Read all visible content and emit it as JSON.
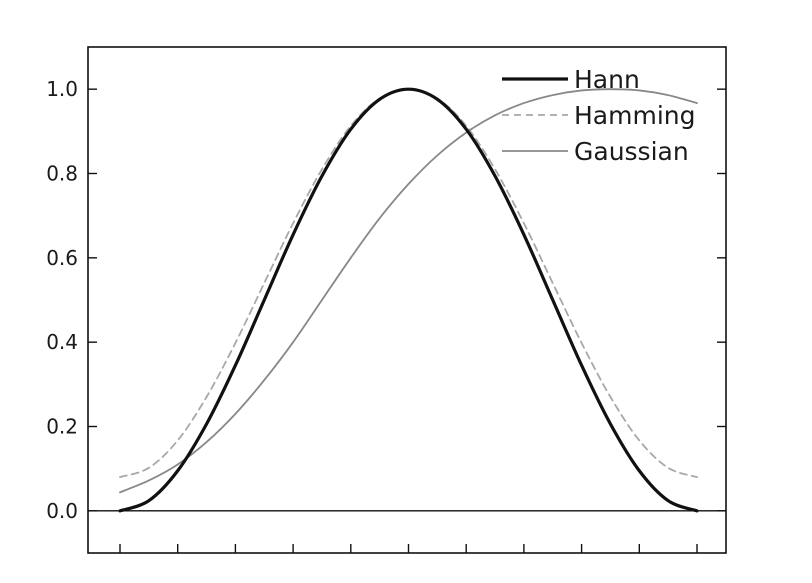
{
  "chart_data": {
    "type": "line",
    "title": "",
    "xlabel": "",
    "ylabel": "",
    "xlim": [
      -0.05,
      1.05
    ],
    "ylim": [
      -0.1,
      1.1
    ],
    "y_ticks": [
      0.0,
      0.2,
      0.4,
      0.6,
      0.8,
      1.0
    ],
    "y_tick_labels": [
      "0.0",
      "0.2",
      "0.4",
      "0.6",
      "0.8",
      "1.0"
    ],
    "x_ticks": [
      0,
      0.1,
      0.2,
      0.3,
      0.4,
      0.5,
      0.6,
      0.7,
      0.8,
      0.9,
      1.0
    ],
    "x_tick_labels_shown": false,
    "grid": false,
    "legend_position": "top-right",
    "baseline": 0.0,
    "x": [
      0.0,
      0.05,
      0.1,
      0.15,
      0.2,
      0.25,
      0.3,
      0.35,
      0.4,
      0.45,
      0.5,
      0.55,
      0.6,
      0.65,
      0.7,
      0.75,
      0.8,
      0.85,
      0.9,
      0.95,
      1.0
    ],
    "series": [
      {
        "name": "Hann",
        "color": "#111111",
        "style": "solid-thick",
        "values": [
          0.0,
          0.024,
          0.095,
          0.206,
          0.345,
          0.5,
          0.655,
          0.794,
          0.905,
          0.976,
          1.0,
          0.976,
          0.905,
          0.794,
          0.655,
          0.5,
          0.345,
          0.206,
          0.095,
          0.024,
          0.0
        ]
      },
      {
        "name": "Hamming",
        "color": "#a8a8a8",
        "style": "dashed",
        "values": [
          0.08,
          0.102,
          0.167,
          0.27,
          0.398,
          0.54,
          0.682,
          0.81,
          0.913,
          0.978,
          1.0,
          0.978,
          0.913,
          0.81,
          0.682,
          0.54,
          0.398,
          0.27,
          0.167,
          0.102,
          0.08
        ]
      },
      {
        "name": "Gaussian",
        "color": "#888888",
        "style": "solid-thin",
        "values": [
          0.044,
          0.072,
          0.11,
          0.163,
          0.23,
          0.31,
          0.4,
          0.5,
          0.6,
          0.694,
          0.775,
          0.843,
          0.897,
          0.938,
          0.967,
          0.986,
          0.997,
          1.0,
          0.997,
          0.986,
          0.967
        ]
      }
    ]
  }
}
